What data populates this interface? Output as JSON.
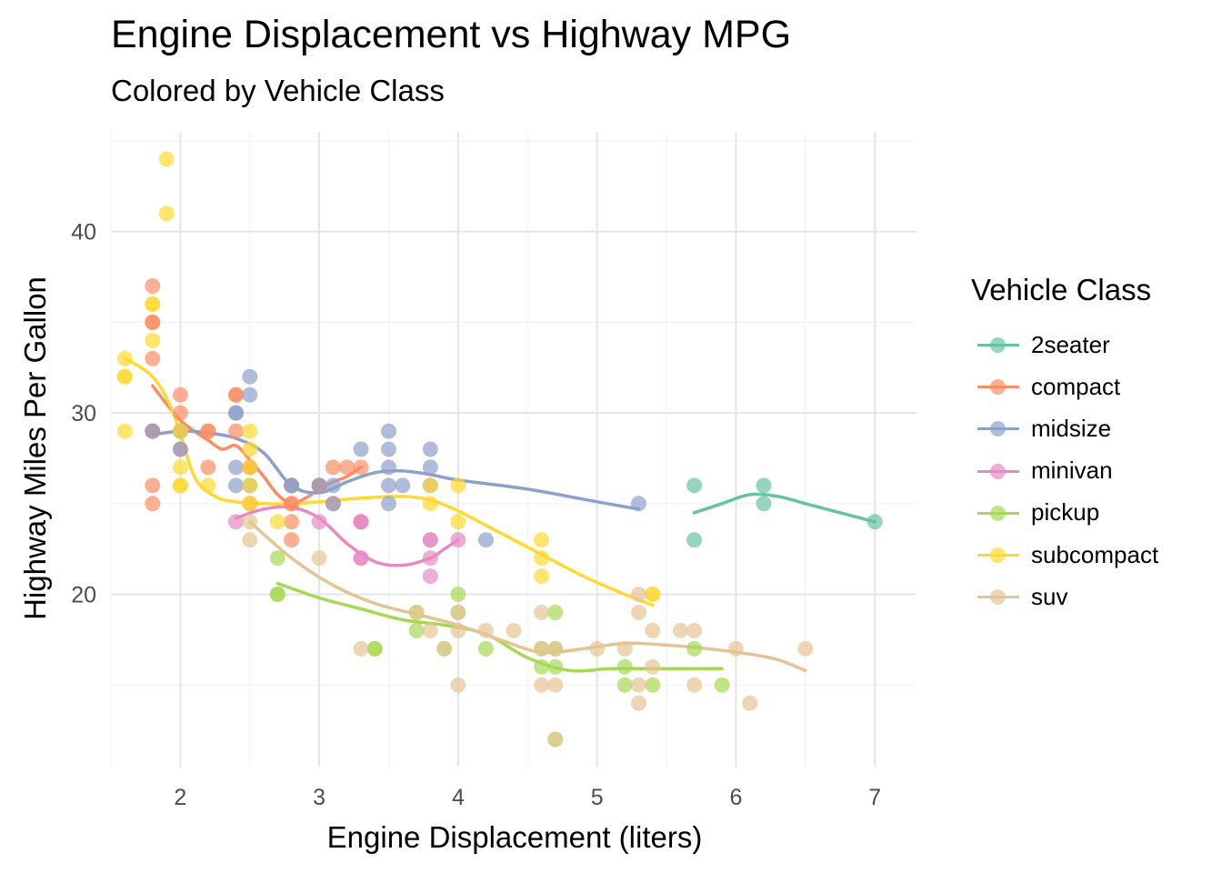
{
  "chart_data": {
    "type": "scatter",
    "title": "Engine Displacement vs Highway MPG",
    "subtitle": "Colored by Vehicle Class",
    "xlabel": "Engine Displacement (liters)",
    "ylabel": "Highway Miles Per Gallon",
    "xlim": [
      1.5,
      7.3
    ],
    "ylim": [
      10.5,
      45.5
    ],
    "x_ticks": [
      "2",
      "3",
      "4",
      "5",
      "6",
      "7"
    ],
    "y_ticks": [
      "20",
      "30",
      "40"
    ],
    "grid": true,
    "legend_title": "Vehicle Class",
    "legend_position": "right",
    "series": [
      {
        "name": "2seater",
        "color": "#66C2A5",
        "points": [
          [
            5.7,
            26
          ],
          [
            5.7,
            23
          ],
          [
            6.2,
            26
          ],
          [
            6.2,
            25
          ],
          [
            7.0,
            24
          ]
        ],
        "smooth": [
          [
            5.7,
            24.5
          ],
          [
            5.9,
            25.0
          ],
          [
            6.1,
            25.5
          ],
          [
            6.3,
            25.4
          ],
          [
            6.5,
            25.0
          ],
          [
            6.8,
            24.4
          ],
          [
            7.0,
            24.0
          ]
        ]
      },
      {
        "name": "compact",
        "color": "#FC8D62",
        "points": [
          [
            1.8,
            29
          ],
          [
            1.8,
            29
          ],
          [
            2.0,
            31
          ],
          [
            2.0,
            30
          ],
          [
            2.8,
            26
          ],
          [
            2.8,
            26
          ],
          [
            3.1,
            27
          ],
          [
            1.8,
            26
          ],
          [
            1.8,
            25
          ],
          [
            2.0,
            28
          ],
          [
            2.0,
            29
          ],
          [
            2.8,
            25
          ],
          [
            2.8,
            25
          ],
          [
            3.1,
            25
          ],
          [
            2.2,
            27
          ],
          [
            2.2,
            29
          ],
          [
            2.4,
            31
          ],
          [
            2.4,
            31
          ],
          [
            3.0,
            26
          ],
          [
            3.0,
            26
          ],
          [
            3.3,
            27
          ],
          [
            1.8,
            33
          ],
          [
            1.8,
            35
          ],
          [
            1.8,
            37
          ],
          [
            1.8,
            35
          ],
          [
            2.5,
            27
          ],
          [
            2.5,
            25
          ],
          [
            2.8,
            24
          ],
          [
            2.8,
            23
          ],
          [
            3.0,
            26
          ],
          [
            3.2,
            27
          ],
          [
            3.3,
            24
          ],
          [
            2.4,
            29
          ],
          [
            2.2,
            29
          ],
          [
            2.5,
            27
          ]
        ],
        "smooth": [
          [
            1.8,
            31.5
          ],
          [
            1.9,
            30.5
          ],
          [
            2.0,
            29.6
          ],
          [
            2.1,
            29.0
          ],
          [
            2.2,
            28.5
          ],
          [
            2.3,
            28.0
          ],
          [
            2.4,
            28.2
          ],
          [
            2.5,
            27.4
          ],
          [
            2.6,
            26.5
          ],
          [
            2.7,
            25.5
          ],
          [
            2.8,
            25.0
          ],
          [
            2.9,
            25.3
          ],
          [
            3.0,
            25.8
          ],
          [
            3.1,
            26.2
          ],
          [
            3.2,
            26.5
          ],
          [
            3.3,
            27.0
          ]
        ]
      },
      {
        "name": "midsize",
        "color": "#8DA0CB",
        "points": [
          [
            1.8,
            29
          ],
          [
            2.0,
            29
          ],
          [
            2.0,
            28
          ],
          [
            2.4,
            30
          ],
          [
            2.4,
            30
          ],
          [
            2.5,
            32
          ],
          [
            2.5,
            31
          ],
          [
            2.8,
            26
          ],
          [
            3.0,
            26
          ],
          [
            3.1,
            26
          ],
          [
            3.1,
            25
          ],
          [
            3.3,
            28
          ],
          [
            3.5,
            29
          ],
          [
            3.5,
            28
          ],
          [
            3.5,
            27
          ],
          [
            3.5,
            26
          ],
          [
            3.5,
            25
          ],
          [
            3.6,
            26
          ],
          [
            3.8,
            28
          ],
          [
            3.8,
            27
          ],
          [
            3.8,
            26
          ],
          [
            4.2,
            23
          ],
          [
            5.3,
            25
          ],
          [
            2.4,
            27
          ],
          [
            2.4,
            26
          ],
          [
            2.5,
            26
          ],
          [
            2.8,
            26
          ]
        ],
        "smooth": [
          [
            1.8,
            28.8
          ],
          [
            2.0,
            29.0
          ],
          [
            2.2,
            28.9
          ],
          [
            2.4,
            28.6
          ],
          [
            2.6,
            27.8
          ],
          [
            2.8,
            26.0
          ],
          [
            3.0,
            25.6
          ],
          [
            3.2,
            26.2
          ],
          [
            3.4,
            26.7
          ],
          [
            3.6,
            26.8
          ],
          [
            3.8,
            26.6
          ],
          [
            4.0,
            26.3
          ],
          [
            4.5,
            25.8
          ],
          [
            5.0,
            25.1
          ],
          [
            5.3,
            24.7
          ]
        ]
      },
      {
        "name": "minivan",
        "color": "#E78AC3",
        "points": [
          [
            2.4,
            24
          ],
          [
            3.0,
            24
          ],
          [
            3.3,
            22
          ],
          [
            3.3,
            22
          ],
          [
            3.3,
            24
          ],
          [
            3.3,
            24
          ],
          [
            3.8,
            22
          ],
          [
            3.8,
            21
          ],
          [
            3.8,
            23
          ],
          [
            3.8,
            23
          ],
          [
            4.0,
            23
          ]
        ],
        "smooth": [
          [
            2.4,
            24.2
          ],
          [
            2.6,
            24.7
          ],
          [
            2.8,
            24.8
          ],
          [
            3.0,
            24.2
          ],
          [
            3.2,
            22.8
          ],
          [
            3.4,
            21.8
          ],
          [
            3.6,
            21.6
          ],
          [
            3.8,
            22.0
          ],
          [
            3.9,
            22.5
          ],
          [
            4.0,
            23.0
          ]
        ]
      },
      {
        "name": "pickup",
        "color": "#A6D854",
        "points": [
          [
            2.7,
            20
          ],
          [
            2.7,
            20
          ],
          [
            2.7,
            22
          ],
          [
            3.4,
            17
          ],
          [
            3.4,
            17
          ],
          [
            3.7,
            18
          ],
          [
            3.7,
            19
          ],
          [
            3.9,
            17
          ],
          [
            4.0,
            20
          ],
          [
            4.2,
            17
          ],
          [
            4.6,
            16
          ],
          [
            4.6,
            17
          ],
          [
            4.7,
            16
          ],
          [
            4.7,
            12
          ],
          [
            4.7,
            19
          ],
          [
            5.2,
            15
          ],
          [
            5.2,
            16
          ],
          [
            5.4,
            15
          ],
          [
            5.7,
            17
          ],
          [
            5.9,
            15
          ],
          [
            4.7,
            17
          ],
          [
            4.0,
            19
          ]
        ],
        "smooth": [
          [
            2.7,
            20.6
          ],
          [
            3.0,
            19.8
          ],
          [
            3.3,
            19.2
          ],
          [
            3.6,
            18.6
          ],
          [
            3.9,
            18.3
          ],
          [
            4.2,
            17.8
          ],
          [
            4.5,
            16.5
          ],
          [
            4.8,
            15.8
          ],
          [
            5.1,
            15.9
          ],
          [
            5.4,
            15.9
          ],
          [
            5.7,
            15.9
          ],
          [
            5.9,
            15.9
          ]
        ]
      },
      {
        "name": "subcompact",
        "color": "#FFD92F",
        "points": [
          [
            1.6,
            33
          ],
          [
            1.6,
            32
          ],
          [
            1.6,
            32
          ],
          [
            1.6,
            29
          ],
          [
            1.8,
            34
          ],
          [
            1.8,
            36
          ],
          [
            1.8,
            36
          ],
          [
            1.9,
            44
          ],
          [
            1.9,
            41
          ],
          [
            2.0,
            29
          ],
          [
            2.0,
            26
          ],
          [
            2.0,
            27
          ],
          [
            2.0,
            26
          ],
          [
            2.2,
            26
          ],
          [
            2.5,
            29
          ],
          [
            2.5,
            28
          ],
          [
            2.5,
            26
          ],
          [
            2.7,
            24
          ],
          [
            3.8,
            26
          ],
          [
            3.8,
            25
          ],
          [
            4.0,
            26
          ],
          [
            4.0,
            24
          ],
          [
            4.6,
            23
          ],
          [
            4.6,
            22
          ],
          [
            4.6,
            21
          ],
          [
            5.4,
            20
          ],
          [
            5.4,
            20
          ],
          [
            2.5,
            27
          ],
          [
            2.5,
            25
          ]
        ],
        "smooth": [
          [
            1.6,
            33.0
          ],
          [
            1.8,
            32.0
          ],
          [
            1.95,
            30.0
          ],
          [
            2.1,
            26.5
          ],
          [
            2.25,
            25.4
          ],
          [
            2.4,
            25.1
          ],
          [
            2.6,
            25.0
          ],
          [
            2.8,
            25.0
          ],
          [
            3.0,
            25.1
          ],
          [
            3.3,
            25.3
          ],
          [
            3.6,
            25.4
          ],
          [
            3.8,
            25.2
          ],
          [
            4.0,
            24.6
          ],
          [
            4.3,
            23.4
          ],
          [
            4.6,
            22.2
          ],
          [
            4.9,
            21.0
          ],
          [
            5.2,
            20.0
          ],
          [
            5.4,
            19.4
          ]
        ]
      },
      {
        "name": "suv",
        "color": "#E5C494",
        "points": [
          [
            2.5,
            24
          ],
          [
            2.5,
            23
          ],
          [
            3.0,
            22
          ],
          [
            3.3,
            17
          ],
          [
            3.7,
            19
          ],
          [
            3.9,
            17
          ],
          [
            4.0,
            19
          ],
          [
            4.0,
            15
          ],
          [
            4.2,
            18
          ],
          [
            4.4,
            18
          ],
          [
            4.6,
            19
          ],
          [
            4.6,
            17
          ],
          [
            4.6,
            15
          ],
          [
            4.7,
            17
          ],
          [
            4.7,
            15
          ],
          [
            5.0,
            17
          ],
          [
            5.2,
            17
          ],
          [
            5.3,
            20
          ],
          [
            5.3,
            19
          ],
          [
            5.3,
            15
          ],
          [
            5.3,
            14
          ],
          [
            5.4,
            18
          ],
          [
            5.4,
            16
          ],
          [
            5.6,
            18
          ],
          [
            5.7,
            18
          ],
          [
            5.7,
            15
          ],
          [
            6.0,
            17
          ],
          [
            6.1,
            14
          ],
          [
            6.5,
            17
          ],
          [
            4.7,
            12
          ],
          [
            3.8,
            18
          ],
          [
            4.0,
            18
          ]
        ],
        "smooth": [
          [
            2.5,
            24.0
          ],
          [
            2.8,
            22.0
          ],
          [
            3.1,
            20.5
          ],
          [
            3.4,
            19.5
          ],
          [
            3.7,
            18.9
          ],
          [
            4.0,
            18.3
          ],
          [
            4.3,
            17.5
          ],
          [
            4.6,
            16.8
          ],
          [
            4.9,
            17.0
          ],
          [
            5.2,
            17.3
          ],
          [
            5.5,
            17.2
          ],
          [
            5.8,
            17.0
          ],
          [
            6.1,
            16.7
          ],
          [
            6.3,
            16.4
          ],
          [
            6.5,
            15.8
          ]
        ]
      }
    ]
  }
}
